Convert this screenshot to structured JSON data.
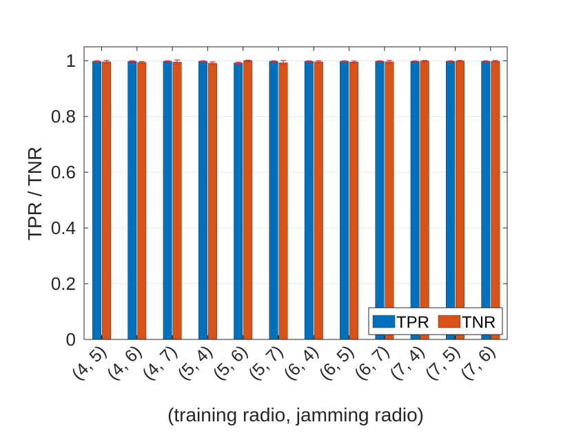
{
  "chart_data": {
    "type": "bar",
    "title": "",
    "xlabel": "(training radio, jamming radio)",
    "ylabel": "TPR / TNR",
    "ylim": [
      0,
      1.05
    ],
    "yticks": [
      "0",
      "0.2",
      "0.4",
      "0.6",
      "0.8",
      "1"
    ],
    "grid": true,
    "legend_position": "bottom-right",
    "categories": [
      "(4, 5)",
      "(4, 6)",
      "(4, 7)",
      "(5, 4)",
      "(5, 6)",
      "(5, 7)",
      "(6, 4)",
      "(6, 5)",
      "(6, 7)",
      "(7, 4)",
      "(7, 5)",
      "(7, 6)"
    ],
    "series": [
      {
        "name": "TPR",
        "color": "#0072BD",
        "values": [
          0.998,
          0.998,
          0.998,
          0.998,
          0.992,
          0.998,
          0.998,
          0.998,
          0.998,
          0.998,
          0.998,
          0.998
        ],
        "errors": [
          0.002,
          0.002,
          0.002,
          0.002,
          0.003,
          0.002,
          0.002,
          0.002,
          0.002,
          0.002,
          0.002,
          0.002
        ]
      },
      {
        "name": "TNR",
        "color": "#D95319",
        "values": [
          0.996,
          0.994,
          0.995,
          0.991,
          1.0,
          0.993,
          0.996,
          0.995,
          0.996,
          0.999,
          0.999,
          0.998
        ],
        "errors": [
          0.005,
          0.003,
          0.008,
          0.005,
          0.002,
          0.008,
          0.004,
          0.004,
          0.005,
          0.002,
          0.002,
          0.003
        ]
      }
    ],
    "error_bar_color": "#E8282B"
  }
}
